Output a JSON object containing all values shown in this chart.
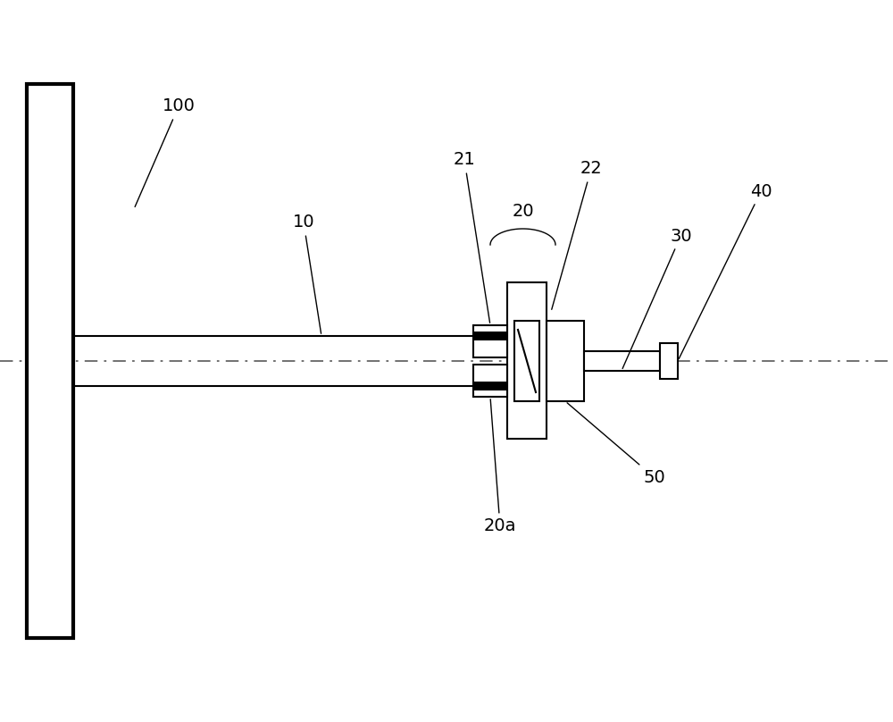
{
  "bg_color": "#ffffff",
  "line_color": "#000000",
  "label_color": "#000000",
  "centerline_color": "#666666",
  "fig_width": 10.0,
  "fig_height": 8.08,
  "dpi": 100,
  "lw_plate": 3.0,
  "lw_thin": 1.5,
  "lw_dash": 1.3,
  "label_fs": 14
}
